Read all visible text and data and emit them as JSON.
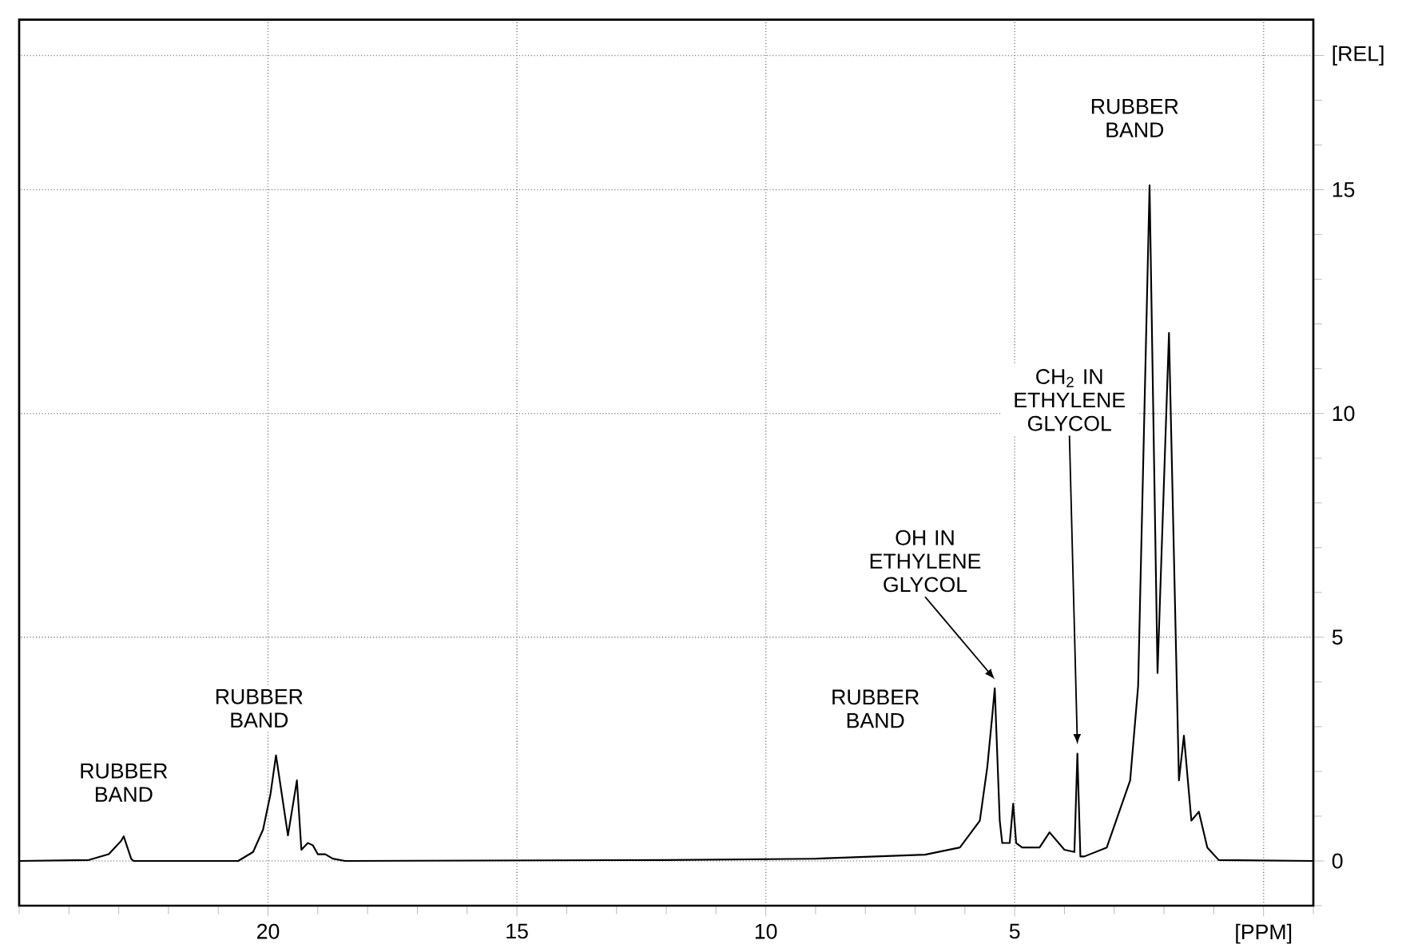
{
  "chart_data": {
    "type": "line",
    "series": [
      {
        "color": "#000000",
        "x": [
          25,
          23.6,
          23.2,
          22.95,
          22.9,
          22.75,
          22.7,
          20.6,
          20.3,
          20.1,
          19.95,
          19.84,
          19.6,
          19.42,
          19.33,
          19.2,
          19.1,
          19.0,
          18.85,
          18.7,
          18.45,
          12,
          9,
          6.8,
          6.1,
          5.7,
          5.55,
          5.45,
          5.4,
          5.3,
          5.25,
          5.1,
          5.03,
          4.97,
          4.85,
          4.5,
          4.3,
          4.0,
          3.8,
          3.74,
          3.68,
          3.6,
          3.15,
          2.68,
          2.52,
          2.29,
          2.13,
          1.9,
          1.7,
          1.6,
          1.45,
          1.3,
          1.13,
          0.9,
          -1
        ],
        "values": [
          0,
          0.02,
          0.15,
          0.45,
          0.55,
          0.05,
          0,
          0,
          0.2,
          0.7,
          1.5,
          2.36,
          0.57,
          1.8,
          0.25,
          0.4,
          0.35,
          0.15,
          0.15,
          0.05,
          0,
          0.02,
          0.05,
          0.14,
          0.3,
          0.9,
          2.1,
          3.25,
          3.86,
          0.9,
          0.4,
          0.4,
          1.28,
          0.4,
          0.3,
          0.3,
          0.64,
          0.25,
          0.2,
          2.4,
          0.1,
          0.1,
          0.3,
          1.8,
          3.9,
          15.1,
          4.2,
          11.8,
          1.8,
          2.8,
          0.9,
          1.1,
          0.3,
          0.02,
          0
        ]
      }
    ],
    "xlim": [
      25,
      -1
    ],
    "ylim": [
      -1,
      18.8
    ],
    "xticks": [
      {
        "value": 25,
        "label": null
      },
      {
        "value": 24,
        "label": null
      },
      {
        "value": 23,
        "label": null
      },
      {
        "value": 22,
        "label": null
      },
      {
        "value": 21,
        "label": null
      },
      20,
      {
        "value": 19,
        "label": null
      },
      {
        "value": 18,
        "label": null
      },
      {
        "value": 17,
        "label": null
      },
      {
        "value": 16,
        "label": null
      },
      15,
      {
        "value": 14,
        "label": null
      },
      {
        "value": 13,
        "label": null
      },
      {
        "value": 12,
        "label": null
      },
      {
        "value": 11,
        "label": null
      },
      10,
      {
        "value": 9,
        "label": null
      },
      {
        "value": 8,
        "label": null
      },
      {
        "value": 7,
        "label": null
      },
      {
        "value": 6,
        "label": null
      },
      5,
      {
        "value": 4,
        "label": null
      },
      {
        "value": 3,
        "label": null
      },
      {
        "value": 2,
        "label": null
      },
      {
        "value": 1,
        "label": null
      },
      {
        "value": 0,
        "label": "[PPM]"
      },
      {
        "value": -1,
        "label": null
      }
    ],
    "yticks": [
      {
        "value": -1,
        "label": null
      },
      0,
      {
        "value": 1,
        "label": null
      },
      {
        "value": 2,
        "label": null
      },
      {
        "value": 3,
        "label": null
      },
      {
        "value": 4,
        "label": null
      },
      5,
      {
        "value": 6,
        "label": null
      },
      {
        "value": 7,
        "label": null
      },
      {
        "value": 8,
        "label": null
      },
      {
        "value": 9,
        "label": null
      },
      10,
      {
        "value": 11,
        "label": null
      },
      {
        "value": 12,
        "label": null
      },
      {
        "value": 13,
        "label": null
      },
      {
        "value": 14,
        "label": null
      },
      15,
      {
        "value": 16,
        "label": null
      },
      {
        "value": 17,
        "label": null
      },
      {
        "value": 18,
        "label": "[REL]"
      }
    ],
    "grid": true,
    "marker": "none",
    "line_style": "solid",
    "annotations": [
      {
        "text": "RUBBER BAND",
        "x": 22.9,
        "y": 0.55
      },
      {
        "text": "RUBBER BAND",
        "x": 19.84,
        "y": 2.36
      },
      "RUBBER BAND",
      "OH IN ETHYLENE GLYCOL",
      "CH$_{2}$ IN ETHYLENE GLYCOL",
      {
        "text": "RUBBER BAND",
        "x": 2.29,
        "y": 15.1
      }
    ]
  }
}
